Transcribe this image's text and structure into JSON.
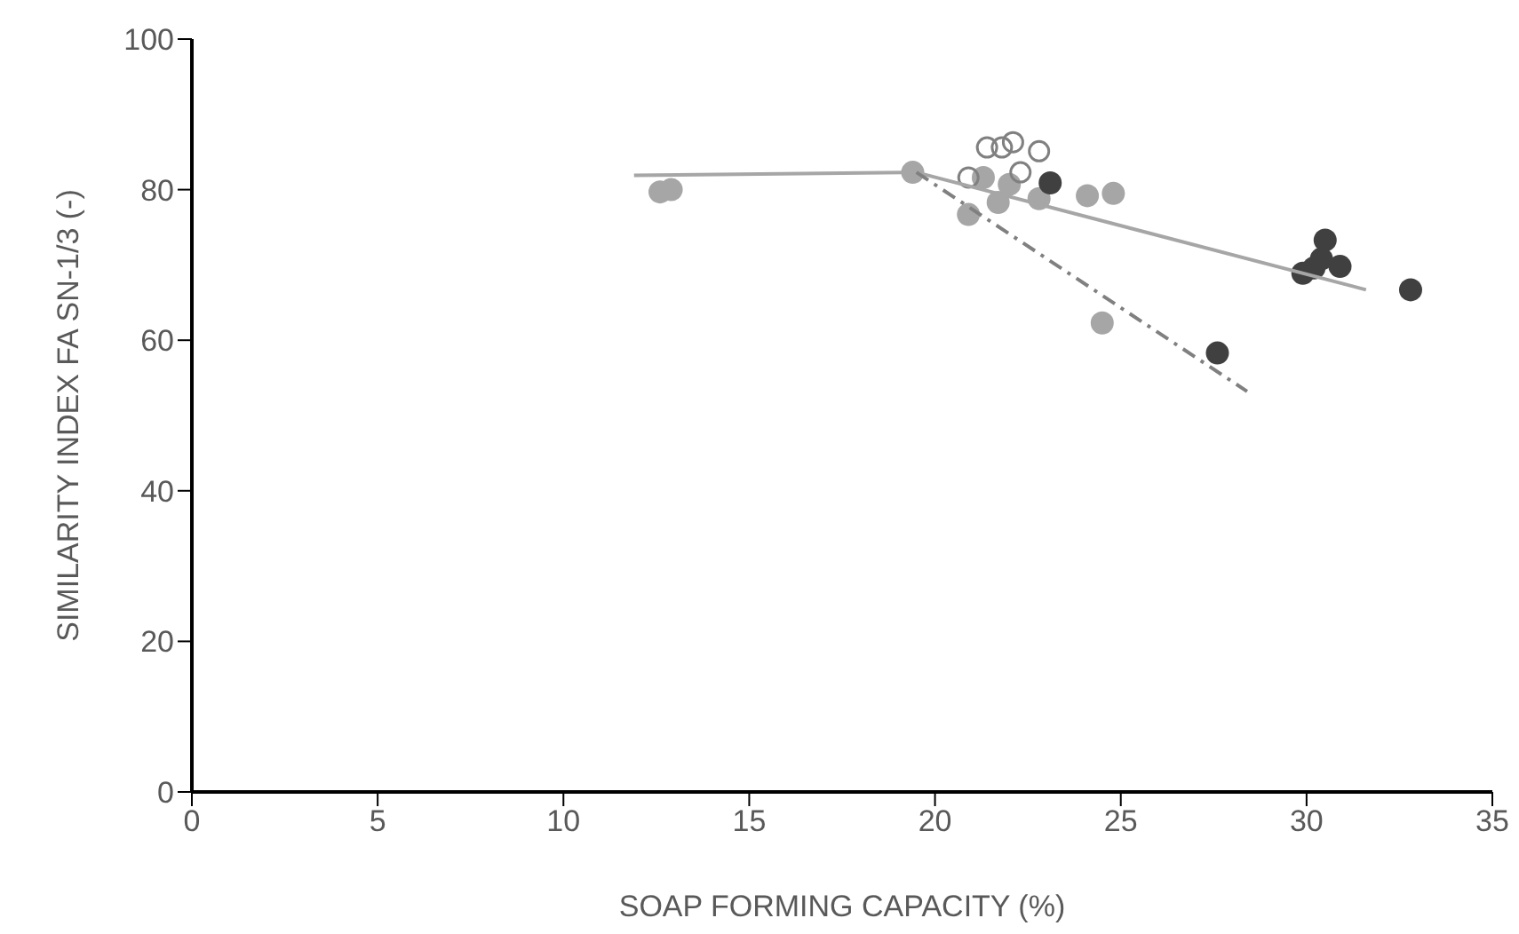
{
  "chart_data": {
    "type": "scatter",
    "xlabel": "SOAP FORMING CAPACITY (%)",
    "ylabel": "SIMILARITY INDEX FA SN-1/3 (-)",
    "xlim": [
      0,
      35
    ],
    "xticks": [
      0,
      5,
      10,
      15,
      20,
      25,
      30,
      35
    ],
    "ylim": [
      0,
      100
    ],
    "yticks": [
      0,
      20,
      40,
      60,
      80,
      100
    ],
    "grid": false,
    "legend": false,
    "marker": "circle",
    "series": [
      {
        "color": "#a6a6a6",
        "x": [
          12.6,
          12.9,
          19.4,
          20.9,
          21.3,
          21.7,
          22.0,
          22.8,
          24.1,
          24.8,
          24.5
        ],
        "values": [
          79.7,
          80.0,
          82.3,
          76.7,
          81.6,
          78.3,
          80.7,
          78.8,
          79.2,
          79.5,
          62.3
        ]
      },
      {
        "color": "#808080",
        "marker": "circle-open",
        "x": [
          20.9,
          21.4,
          21.8,
          22.1,
          22.3,
          22.8
        ],
        "values": [
          81.6,
          85.6,
          85.6,
          86.3,
          82.3,
          85.1
        ]
      },
      {
        "color": "#404040",
        "x": [
          23.1,
          27.6,
          29.9,
          30.2,
          30.4,
          30.5,
          30.9,
          32.8
        ],
        "values": [
          80.9,
          58.3,
          68.9,
          69.6,
          70.8,
          73.3,
          69.8,
          66.7
        ]
      },
      {
        "type": "line",
        "color": "#a6a6a6",
        "line_style": "solid",
        "marker": "none",
        "x": [
          11.9,
          19.5,
          31.6
        ],
        "values": [
          81.9,
          82.3,
          66.7
        ]
      },
      {
        "type": "line",
        "color": "#808080",
        "line_style": "dashdot",
        "marker": "none",
        "x": [
          19.5,
          28.4
        ],
        "values": [
          82.3,
          53.2
        ]
      }
    ]
  }
}
